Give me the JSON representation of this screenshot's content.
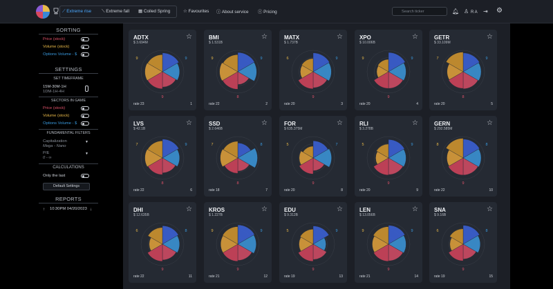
{
  "nav": {
    "modes": [
      {
        "label": "Extreme rise",
        "icon": "trend-up-icon",
        "active": true
      },
      {
        "label": "Extreme fall",
        "icon": "trend-down-icon",
        "active": false
      },
      {
        "label": "Coiled Spring",
        "icon": "calendar-icon",
        "active": false
      }
    ],
    "links": [
      {
        "label": "Favourites",
        "icon": "star-icon"
      },
      {
        "label": "About service",
        "icon": "info-icon"
      },
      {
        "label": "Pricing",
        "icon": "dollar-icon"
      }
    ],
    "search_placeholder": "Search ticker",
    "user_initials": "R A"
  },
  "sidebar": {
    "sorting_title": "SORTING",
    "sorting": [
      {
        "label": "Price (stock)",
        "color": "#e0526a"
      },
      {
        "label": "Volume (stock)",
        "color": "#e9b949"
      },
      {
        "label": "Options Volume - $",
        "color": "#3a9be0"
      }
    ],
    "settings_title": "SETTINGS",
    "timeframe_title": "SET TIMEFRAME",
    "timeframe_line1": "15M-30M-1H",
    "timeframe_line2": "1DM-1H-4H",
    "sectors_title": "SECTORS IN GAME",
    "sectors": [
      {
        "label": "Price (stock)",
        "color": "#e0526a"
      },
      {
        "label": "Volume (stock)",
        "color": "#e9b949"
      },
      {
        "label": "Options Volume - $",
        "color": "#3a9be0"
      }
    ],
    "fundamental_title": "FUNDAMENTAL FILTERS",
    "cap_label": "Capitalization",
    "cap_value": "Mega - Nano",
    "pe_label": "P/E",
    "pe_value": "0 - ∞",
    "calculations_title": "CALCULATIONS",
    "only_last_label": "Only the last",
    "default_settings_label": "Default Settings",
    "reports_title": "REPORTS",
    "report_entry": "10:30PM 04/20/2023"
  },
  "colors": {
    "blue": "#3a5fcf",
    "cyan": "#3a8fd0",
    "pink": "#c94a62",
    "red": "#c9425a",
    "gold": "#d69a3a",
    "gold2": "#c9912e"
  },
  "cards": [
    {
      "symbol": "ADTX",
      "price": "$ 3.694M",
      "rate": "rate 23",
      "rank": "1",
      "left": "9",
      "right": "9",
      "bottom": "9",
      "w": [
        0.88,
        0.8,
        0.72,
        0.8,
        0.82,
        0.8
      ]
    },
    {
      "symbol": "BMI",
      "price": "$ 1.531B",
      "rate": "rate 22",
      "rank": "2",
      "left": "9",
      "right": "9",
      "bottom": "8",
      "w": [
        0.9,
        0.88,
        0.6,
        0.82,
        0.85,
        0.8
      ]
    },
    {
      "symbol": "MATX",
      "price": "$ 1.737B",
      "rate": "rate 20",
      "rank": "3",
      "left": "6",
      "right": "9",
      "bottom": "9",
      "w": [
        0.88,
        0.85,
        0.75,
        0.8,
        0.6,
        0.62
      ]
    },
    {
      "symbol": "XPO",
      "price": "$ 10.006B",
      "rate": "rate 20",
      "rank": "4",
      "left": "9",
      "right": "9",
      "bottom": "9",
      "w": [
        0.9,
        0.82,
        0.78,
        0.78,
        0.55,
        0.58
      ]
    },
    {
      "symbol": "GETR",
      "price": "$ 33.109M",
      "rate": "rate 20",
      "rank": "5",
      "left": "7",
      "right": "9",
      "bottom": "8",
      "w": [
        0.88,
        0.84,
        0.8,
        0.78,
        0.75,
        0.92
      ]
    },
    {
      "symbol": "LVS",
      "price": "$ 42.1B",
      "rate": "rate 22",
      "rank": "6",
      "left": "7",
      "right": "9",
      "bottom": "8",
      "w": [
        0.88,
        0.8,
        0.7,
        0.78,
        0.82,
        0.8
      ]
    },
    {
      "symbol": "SSD",
      "price": "$ 2.646B",
      "rate": "rate 18",
      "rank": "7",
      "left": "7",
      "right": "8",
      "bottom": "8",
      "w": [
        0.7,
        0.92,
        0.62,
        0.72,
        0.82,
        0.78
      ]
    },
    {
      "symbol": "FOR",
      "price": "$ 635.375M",
      "rate": "rate 20",
      "rank": "8",
      "left": "5",
      "right": "7",
      "bottom": "9",
      "w": [
        0.8,
        0.86,
        0.6,
        0.75,
        0.65,
        0.55
      ]
    },
    {
      "symbol": "RLI",
      "price": "$ 3.278B",
      "rate": "rate 20",
      "rank": "9",
      "left": "5",
      "right": "9",
      "bottom": "9",
      "w": [
        0.86,
        0.82,
        0.78,
        0.8,
        0.6,
        0.65
      ]
    },
    {
      "symbol": "GERN",
      "price": "$ 292.585M",
      "rate": "rate 22",
      "rank": "10",
      "left": "8",
      "right": "8",
      "bottom": "9",
      "w": [
        0.88,
        0.84,
        0.8,
        0.8,
        0.76,
        0.92
      ]
    },
    {
      "symbol": "DHI",
      "price": "$ 12.635B",
      "rate": "rate 22",
      "rank": "11",
      "left": "6",
      "right": "8",
      "bottom": "9",
      "w": [
        0.86,
        0.8,
        0.74,
        0.8,
        0.62,
        0.78
      ]
    },
    {
      "symbol": "KROS",
      "price": "$ 1.227B",
      "rate": "rate 21",
      "rank": "12",
      "left": "9",
      "right": "9",
      "bottom": "9",
      "w": [
        0.9,
        0.86,
        0.76,
        0.8,
        0.8,
        0.82
      ]
    },
    {
      "symbol": "EDU",
      "price": "$ 9.312B",
      "rate": "rate 19",
      "rank": "13",
      "left": "5",
      "right": "9",
      "bottom": "9",
      "w": [
        0.85,
        0.6,
        0.72,
        0.8,
        0.66,
        0.7
      ]
    },
    {
      "symbol": "LEN",
      "price": "$ 13.056B",
      "rate": "rate 21",
      "rank": "14",
      "left": "9",
      "right": "9",
      "bottom": "9",
      "w": [
        0.88,
        0.82,
        0.78,
        0.8,
        0.76,
        0.82
      ]
    },
    {
      "symbol": "SNA",
      "price": "$ 9.16B",
      "rate": "rate 19",
      "rank": "15",
      "left": "6",
      "right": "8",
      "bottom": "9",
      "w": [
        0.88,
        0.8,
        0.7,
        0.78,
        0.62,
        0.72
      ]
    }
  ]
}
